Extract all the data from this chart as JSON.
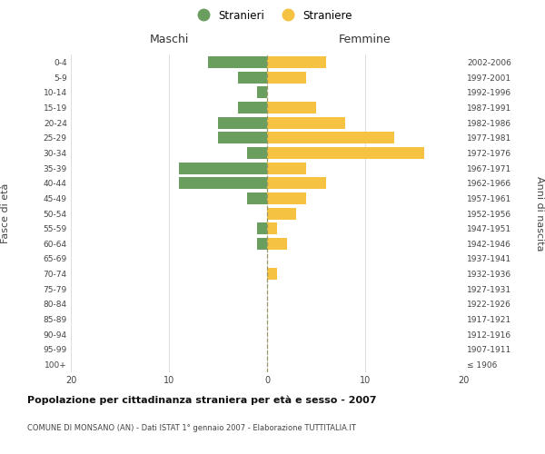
{
  "age_groups": [
    "100+",
    "95-99",
    "90-94",
    "85-89",
    "80-84",
    "75-79",
    "70-74",
    "65-69",
    "60-64",
    "55-59",
    "50-54",
    "45-49",
    "40-44",
    "35-39",
    "30-34",
    "25-29",
    "20-24",
    "15-19",
    "10-14",
    "5-9",
    "0-4"
  ],
  "birth_years": [
    "≤ 1906",
    "1907-1911",
    "1912-1916",
    "1917-1921",
    "1922-1926",
    "1927-1931",
    "1932-1936",
    "1937-1941",
    "1942-1946",
    "1947-1951",
    "1952-1956",
    "1957-1961",
    "1962-1966",
    "1967-1971",
    "1972-1976",
    "1977-1981",
    "1982-1986",
    "1987-1991",
    "1992-1996",
    "1997-2001",
    "2002-2006"
  ],
  "maschi": [
    0,
    0,
    0,
    0,
    0,
    0,
    0,
    0,
    1,
    1,
    0,
    2,
    9,
    9,
    2,
    5,
    5,
    3,
    1,
    3,
    6
  ],
  "femmine": [
    0,
    0,
    0,
    0,
    0,
    0,
    1,
    0,
    2,
    1,
    3,
    4,
    6,
    4,
    16,
    13,
    8,
    5,
    0,
    4,
    6
  ],
  "color_maschi": "#6a9e5e",
  "color_femmine": "#f5c242",
  "title_bold": "Popolazione per cittadinanza straniera per età e sesso - 2007",
  "subtitle": "COMUNE DI MONSANO (AN) - Dati ISTAT 1° gennaio 2007 - Elaborazione TUTTITALIA.IT",
  "xlabel_left": "Maschi",
  "xlabel_right": "Femmine",
  "ylabel_left": "Fasce di età",
  "ylabel_right": "Anni di nascita",
  "legend_stranieri": "Stranieri",
  "legend_straniere": "Straniere",
  "xlim": 20,
  "background_color": "#ffffff",
  "grid_color": "#d0d0d0"
}
